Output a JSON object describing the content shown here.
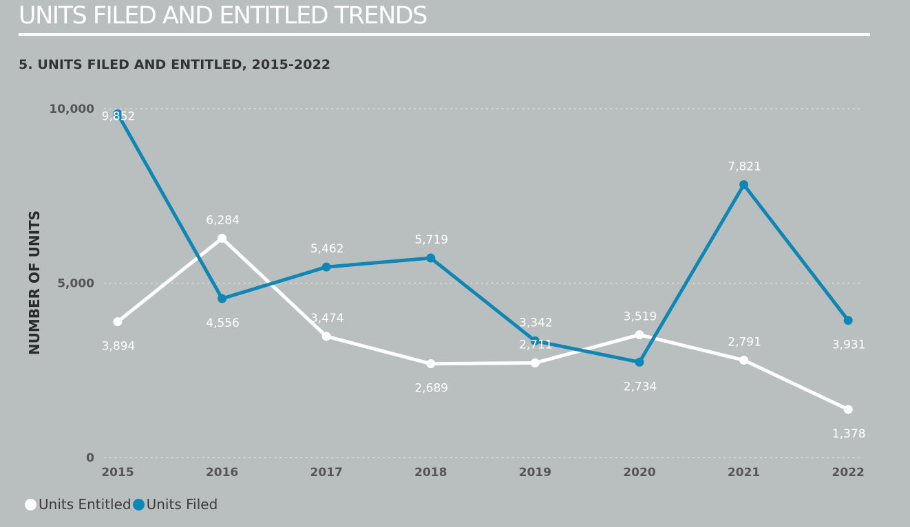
{
  "header": {
    "title": "UNITS FILED AND ENTITLED TRENDS"
  },
  "chart_data": {
    "type": "line",
    "title": "5. UNITS FILED AND ENTITLED, 2015-2022",
    "xlabel": "",
    "ylabel": "NUMBER OF UNITS",
    "categories": [
      "2015",
      "2016",
      "2017",
      "2018",
      "2019",
      "2020",
      "2021",
      "2022"
    ],
    "ylim": [
      0,
      10000
    ],
    "yticks": [
      {
        "value": 0,
        "label": "0"
      },
      {
        "value": 5000,
        "label": "5,000"
      },
      {
        "value": 10000,
        "label": "10,000"
      }
    ],
    "grid": true,
    "legend_position": "bottom-left",
    "series": [
      {
        "name": "Units Entitled",
        "color": "#ffffff",
        "values": [
          3894,
          6284,
          3474,
          2689,
          2711,
          3519,
          2791,
          1378
        ],
        "labels": [
          "3,894",
          "6,284",
          "3,474",
          "2,689",
          "2,711",
          "3,519",
          "2,791",
          "1,378"
        ]
      },
      {
        "name": "Units Filed",
        "color": "#0f86b3",
        "values": [
          9852,
          4556,
          5462,
          5719,
          3342,
          2734,
          7821,
          3931
        ],
        "labels": [
          "9,852",
          "4,556",
          "5,462",
          "5,719",
          "3,342",
          "2,734",
          "7,821",
          "3,931"
        ]
      }
    ]
  },
  "colors": {
    "background": "#b9bfbf",
    "entitled": "#ffffff",
    "filed": "#0f86b3"
  }
}
